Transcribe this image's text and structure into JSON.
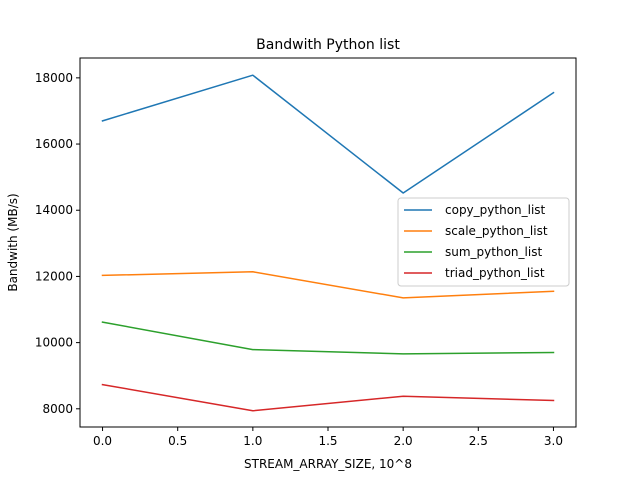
{
  "chart_data": {
    "type": "line",
    "title": "Bandwith Python list",
    "xlabel": "STREAM_ARRAY_SIZE, 10^8",
    "ylabel": "Bandwith (MB/s)",
    "x": [
      0,
      1,
      2,
      3
    ],
    "xlim": [
      -0.15,
      3.15
    ],
    "ylim": [
      7450,
      18600
    ],
    "xticks": [
      0.0,
      0.5,
      1.0,
      1.5,
      2.0,
      2.5,
      3.0
    ],
    "xtick_labels": [
      "0.0",
      "0.5",
      "1.0",
      "1.5",
      "2.0",
      "2.5",
      "3.0"
    ],
    "yticks": [
      8000,
      10000,
      12000,
      14000,
      16000,
      18000
    ],
    "ytick_labels": [
      "8000",
      "10000",
      "12000",
      "14000",
      "16000",
      "18000"
    ],
    "grid": false,
    "legend_position": "center-right",
    "series": [
      {
        "name": "copy_python_list",
        "color": "#1f77b4",
        "values": [
          16700,
          18080,
          14520,
          17550
        ]
      },
      {
        "name": "scale_python_list",
        "color": "#ff7f0e",
        "values": [
          12030,
          12140,
          11350,
          11550
        ]
      },
      {
        "name": "sum_python_list",
        "color": "#2ca02c",
        "values": [
          10620,
          9790,
          9660,
          9700
        ]
      },
      {
        "name": "triad_python_list",
        "color": "#d62728",
        "values": [
          8730,
          7940,
          8380,
          8250
        ]
      }
    ]
  }
}
